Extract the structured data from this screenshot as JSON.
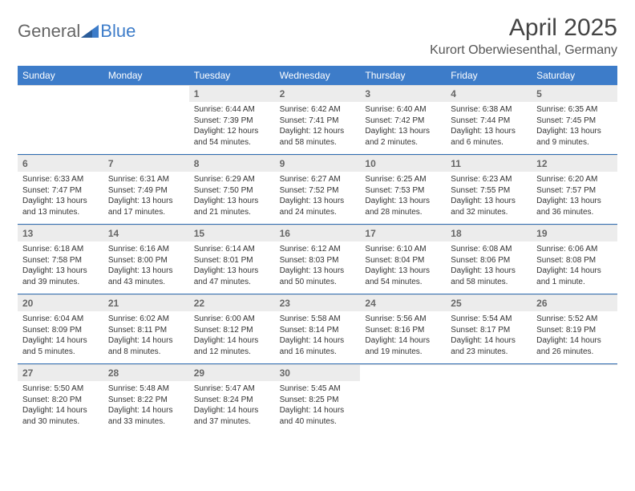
{
  "logo": {
    "part1": "General",
    "part2": "Blue"
  },
  "title": "April 2025",
  "location": "Kurort Oberwiesenthal, Germany",
  "colors": {
    "header_bg": "#3d7cc9",
    "header_text": "#ffffff",
    "daynum_bg": "#ececec",
    "daynum_text": "#666666",
    "rule": "#2f6db3",
    "body_text": "#333333"
  },
  "weekdays": [
    "Sunday",
    "Monday",
    "Tuesday",
    "Wednesday",
    "Thursday",
    "Friday",
    "Saturday"
  ],
  "weeks": [
    [
      null,
      null,
      {
        "n": "1",
        "sunrise": "Sunrise: 6:44 AM",
        "sunset": "Sunset: 7:39 PM",
        "daylight": "Daylight: 12 hours and 54 minutes."
      },
      {
        "n": "2",
        "sunrise": "Sunrise: 6:42 AM",
        "sunset": "Sunset: 7:41 PM",
        "daylight": "Daylight: 12 hours and 58 minutes."
      },
      {
        "n": "3",
        "sunrise": "Sunrise: 6:40 AM",
        "sunset": "Sunset: 7:42 PM",
        "daylight": "Daylight: 13 hours and 2 minutes."
      },
      {
        "n": "4",
        "sunrise": "Sunrise: 6:38 AM",
        "sunset": "Sunset: 7:44 PM",
        "daylight": "Daylight: 13 hours and 6 minutes."
      },
      {
        "n": "5",
        "sunrise": "Sunrise: 6:35 AM",
        "sunset": "Sunset: 7:45 PM",
        "daylight": "Daylight: 13 hours and 9 minutes."
      }
    ],
    [
      {
        "n": "6",
        "sunrise": "Sunrise: 6:33 AM",
        "sunset": "Sunset: 7:47 PM",
        "daylight": "Daylight: 13 hours and 13 minutes."
      },
      {
        "n": "7",
        "sunrise": "Sunrise: 6:31 AM",
        "sunset": "Sunset: 7:49 PM",
        "daylight": "Daylight: 13 hours and 17 minutes."
      },
      {
        "n": "8",
        "sunrise": "Sunrise: 6:29 AM",
        "sunset": "Sunset: 7:50 PM",
        "daylight": "Daylight: 13 hours and 21 minutes."
      },
      {
        "n": "9",
        "sunrise": "Sunrise: 6:27 AM",
        "sunset": "Sunset: 7:52 PM",
        "daylight": "Daylight: 13 hours and 24 minutes."
      },
      {
        "n": "10",
        "sunrise": "Sunrise: 6:25 AM",
        "sunset": "Sunset: 7:53 PM",
        "daylight": "Daylight: 13 hours and 28 minutes."
      },
      {
        "n": "11",
        "sunrise": "Sunrise: 6:23 AM",
        "sunset": "Sunset: 7:55 PM",
        "daylight": "Daylight: 13 hours and 32 minutes."
      },
      {
        "n": "12",
        "sunrise": "Sunrise: 6:20 AM",
        "sunset": "Sunset: 7:57 PM",
        "daylight": "Daylight: 13 hours and 36 minutes."
      }
    ],
    [
      {
        "n": "13",
        "sunrise": "Sunrise: 6:18 AM",
        "sunset": "Sunset: 7:58 PM",
        "daylight": "Daylight: 13 hours and 39 minutes."
      },
      {
        "n": "14",
        "sunrise": "Sunrise: 6:16 AM",
        "sunset": "Sunset: 8:00 PM",
        "daylight": "Daylight: 13 hours and 43 minutes."
      },
      {
        "n": "15",
        "sunrise": "Sunrise: 6:14 AM",
        "sunset": "Sunset: 8:01 PM",
        "daylight": "Daylight: 13 hours and 47 minutes."
      },
      {
        "n": "16",
        "sunrise": "Sunrise: 6:12 AM",
        "sunset": "Sunset: 8:03 PM",
        "daylight": "Daylight: 13 hours and 50 minutes."
      },
      {
        "n": "17",
        "sunrise": "Sunrise: 6:10 AM",
        "sunset": "Sunset: 8:04 PM",
        "daylight": "Daylight: 13 hours and 54 minutes."
      },
      {
        "n": "18",
        "sunrise": "Sunrise: 6:08 AM",
        "sunset": "Sunset: 8:06 PM",
        "daylight": "Daylight: 13 hours and 58 minutes."
      },
      {
        "n": "19",
        "sunrise": "Sunrise: 6:06 AM",
        "sunset": "Sunset: 8:08 PM",
        "daylight": "Daylight: 14 hours and 1 minute."
      }
    ],
    [
      {
        "n": "20",
        "sunrise": "Sunrise: 6:04 AM",
        "sunset": "Sunset: 8:09 PM",
        "daylight": "Daylight: 14 hours and 5 minutes."
      },
      {
        "n": "21",
        "sunrise": "Sunrise: 6:02 AM",
        "sunset": "Sunset: 8:11 PM",
        "daylight": "Daylight: 14 hours and 8 minutes."
      },
      {
        "n": "22",
        "sunrise": "Sunrise: 6:00 AM",
        "sunset": "Sunset: 8:12 PM",
        "daylight": "Daylight: 14 hours and 12 minutes."
      },
      {
        "n": "23",
        "sunrise": "Sunrise: 5:58 AM",
        "sunset": "Sunset: 8:14 PM",
        "daylight": "Daylight: 14 hours and 16 minutes."
      },
      {
        "n": "24",
        "sunrise": "Sunrise: 5:56 AM",
        "sunset": "Sunset: 8:16 PM",
        "daylight": "Daylight: 14 hours and 19 minutes."
      },
      {
        "n": "25",
        "sunrise": "Sunrise: 5:54 AM",
        "sunset": "Sunset: 8:17 PM",
        "daylight": "Daylight: 14 hours and 23 minutes."
      },
      {
        "n": "26",
        "sunrise": "Sunrise: 5:52 AM",
        "sunset": "Sunset: 8:19 PM",
        "daylight": "Daylight: 14 hours and 26 minutes."
      }
    ],
    [
      {
        "n": "27",
        "sunrise": "Sunrise: 5:50 AM",
        "sunset": "Sunset: 8:20 PM",
        "daylight": "Daylight: 14 hours and 30 minutes."
      },
      {
        "n": "28",
        "sunrise": "Sunrise: 5:48 AM",
        "sunset": "Sunset: 8:22 PM",
        "daylight": "Daylight: 14 hours and 33 minutes."
      },
      {
        "n": "29",
        "sunrise": "Sunrise: 5:47 AM",
        "sunset": "Sunset: 8:24 PM",
        "daylight": "Daylight: 14 hours and 37 minutes."
      },
      {
        "n": "30",
        "sunrise": "Sunrise: 5:45 AM",
        "sunset": "Sunset: 8:25 PM",
        "daylight": "Daylight: 14 hours and 40 minutes."
      },
      null,
      null,
      null
    ]
  ]
}
